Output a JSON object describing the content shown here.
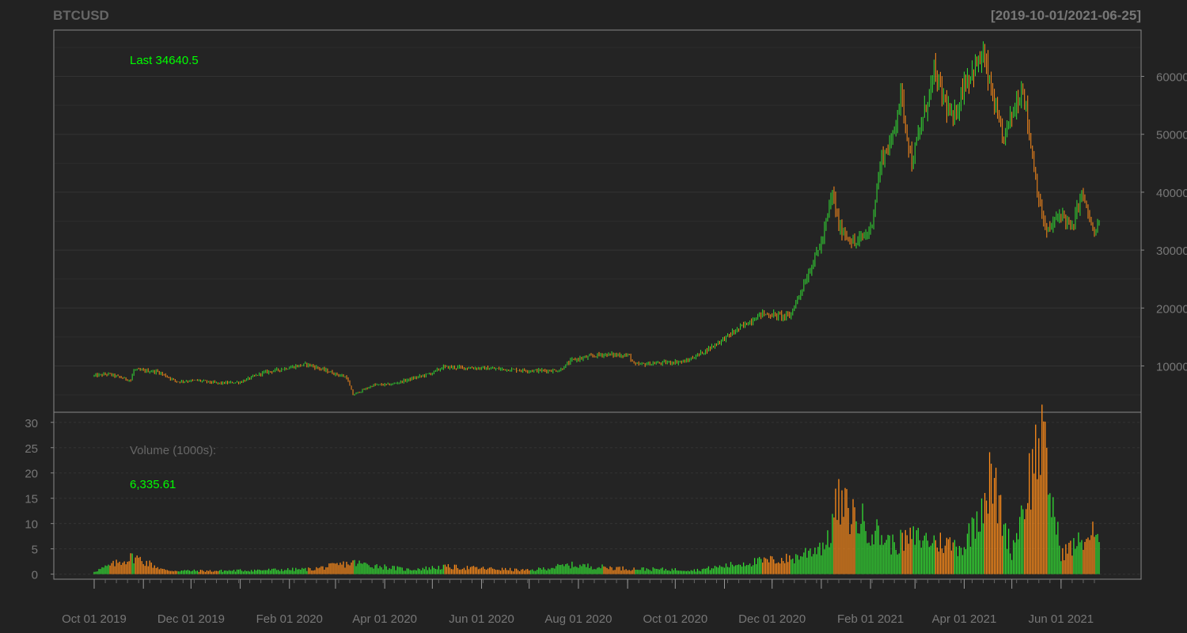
{
  "header": {
    "symbol": "BTCUSD",
    "date_range": "[2019-10-01/2021-06-25]"
  },
  "chart_data": [
    {
      "type": "ohlc",
      "title": "BTCUSD",
      "subtitle": "[2019-10-01/2021-06-25]",
      "last_label": "Last 34640.5",
      "y_ticks": [
        10000,
        20000,
        30000,
        40000,
        50000,
        60000
      ],
      "ylim": [
        2000,
        68000
      ],
      "colors": {
        "up": "#33dd33",
        "down": "#ff8c1a",
        "label": "#00ff00"
      },
      "x_ticks": [
        "Oct 01 2019",
        "Dec 01 2019",
        "Feb 01 2020",
        "Apr 01 2020",
        "Jun 01 2020",
        "Aug 01 2020",
        "Oct 01 2020",
        "Dec 01 2020",
        "Feb 01 2021",
        "Apr 01 2021",
        "Jun 01 2021"
      ],
      "date_range": [
        "2019-10-01",
        "2021-06-25"
      ],
      "close_anchors": [
        [
          "2019-10-01",
          8300
        ],
        [
          "2019-10-10",
          8600
        ],
        [
          "2019-10-24",
          7500
        ],
        [
          "2019-10-26",
          9300
        ],
        [
          "2019-11-10",
          9000
        ],
        [
          "2019-11-22",
          7300
        ],
        [
          "2019-12-05",
          7500
        ],
        [
          "2019-12-18",
          7000
        ],
        [
          "2020-01-01",
          7200
        ],
        [
          "2020-01-15",
          8800
        ],
        [
          "2020-02-12",
          10300
        ],
        [
          "2020-02-28",
          8800
        ],
        [
          "2020-03-08",
          8000
        ],
        [
          "2020-03-12",
          5000
        ],
        [
          "2020-03-25",
          6700
        ],
        [
          "2020-04-05",
          6800
        ],
        [
          "2020-04-30",
          8700
        ],
        [
          "2020-05-08",
          9800
        ],
        [
          "2020-06-01",
          9600
        ],
        [
          "2020-07-01",
          9200
        ],
        [
          "2020-07-20",
          9200
        ],
        [
          "2020-07-28",
          11000
        ],
        [
          "2020-08-16",
          12000
        ],
        [
          "2020-09-02",
          11800
        ],
        [
          "2020-09-05",
          10200
        ],
        [
          "2020-10-08",
          10800
        ],
        [
          "2020-10-21",
          12800
        ],
        [
          "2020-11-05",
          15500
        ],
        [
          "2020-11-24",
          19000
        ],
        [
          "2020-12-12",
          18500
        ],
        [
          "2020-12-20",
          23500
        ],
        [
          "2021-01-02",
          32000
        ],
        [
          "2021-01-08",
          40000
        ],
        [
          "2021-01-12",
          34000
        ],
        [
          "2021-01-22",
          31000
        ],
        [
          "2021-02-01",
          33500
        ],
        [
          "2021-02-08",
          46000
        ],
        [
          "2021-02-14",
          48500
        ],
        [
          "2021-02-20",
          57000
        ],
        [
          "2021-02-27",
          45000
        ],
        [
          "2021-03-13",
          60500
        ],
        [
          "2021-03-25",
          52000
        ],
        [
          "2021-04-01",
          59000
        ],
        [
          "2021-04-13",
          63500
        ],
        [
          "2021-04-25",
          49000
        ],
        [
          "2021-05-08",
          58500
        ],
        [
          "2021-05-12",
          50000
        ],
        [
          "2021-05-19",
          37000
        ],
        [
          "2021-05-23",
          33000
        ],
        [
          "2021-06-01",
          36500
        ],
        [
          "2021-06-08",
          33500
        ],
        [
          "2021-06-14",
          40000
        ],
        [
          "2021-06-22",
          32500
        ],
        [
          "2021-06-25",
          34640.5
        ]
      ]
    },
    {
      "type": "bar",
      "title": "Volume (1000s):",
      "last_value": "6,335.61",
      "y_ticks": [
        0,
        5,
        10,
        15,
        20,
        25,
        30
      ],
      "ylim": [
        -1,
        32
      ],
      "volume_anchors": [
        [
          "2019-10-01",
          0.6
        ],
        [
          "2019-10-26",
          3.8
        ],
        [
          "2019-11-15",
          0.8
        ],
        [
          "2019-12-15",
          0.7
        ],
        [
          "2020-01-15",
          0.9
        ],
        [
          "2020-02-15",
          1.1
        ],
        [
          "2020-03-12",
          2.5
        ],
        [
          "2020-04-15",
          1.0
        ],
        [
          "2020-05-10",
          1.6
        ],
        [
          "2020-07-01",
          0.8
        ],
        [
          "2020-07-27",
          2.0
        ],
        [
          "2020-09-01",
          1.2
        ],
        [
          "2020-10-15",
          0.9
        ],
        [
          "2020-11-15",
          2.5
        ],
        [
          "2020-12-15",
          3.5
        ],
        [
          "2021-01-05",
          7.0
        ],
        [
          "2021-01-11",
          15.5
        ],
        [
          "2021-02-15",
          6.5
        ],
        [
          "2021-03-01",
          8.0
        ],
        [
          "2021-04-01",
          6.0
        ],
        [
          "2021-04-18",
          21.0
        ],
        [
          "2021-05-01",
          5.0
        ],
        [
          "2021-05-19",
          30.5
        ],
        [
          "2021-06-01",
          4.5
        ],
        [
          "2021-06-22",
          9.0
        ],
        [
          "2021-06-25",
          6.34
        ]
      ]
    }
  ]
}
